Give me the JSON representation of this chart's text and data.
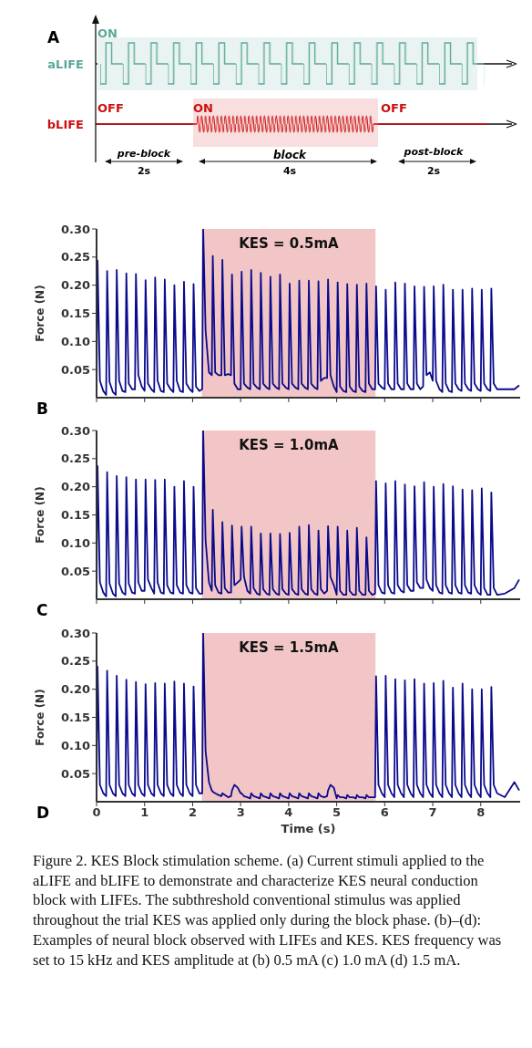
{
  "chart_data": [
    {
      "type": "other",
      "title": "A",
      "annotations": [
        "ON",
        "aLIFE",
        "OFF",
        "bLIFE",
        "ON",
        "OFF",
        "pre-block",
        "2s",
        "block",
        "4s",
        "post-block",
        "2s"
      ]
    },
    {
      "type": "line",
      "title": "B",
      "ylabel": "Force (N)",
      "xlim": [
        0,
        8.82
      ],
      "xticks": [
        0,
        1,
        2,
        3,
        4,
        5,
        6,
        7,
        8
      ],
      "ylim": [
        0,
        0.3
      ],
      "yticks": [
        0.05,
        {
          "value": 0.1,
          "label": "0.10"
        },
        0.15,
        {
          "value": 0.2,
          "label": "0.20"
        },
        0.25,
        {
          "value": 0.3,
          "label": "0.30"
        }
      ],
      "tick_labels": "y",
      "marker": "none",
      "line_style": "solid",
      "bands": [
        {
          "axis": "x",
          "from": 2.2,
          "to": 5.8,
          "label": "KES = 0.5mA",
          "color": "#f2c6c6"
        }
      ],
      "x": [
        0,
        0.02,
        0.07,
        0.14,
        0.2,
        0.22,
        0.27,
        0.34,
        0.4,
        0.42,
        0.47,
        0.54,
        0.6,
        0.62,
        0.67,
        0.74,
        0.8,
        0.82,
        0.87,
        0.94,
        1,
        1.02,
        1.07,
        1.14,
        1.2,
        1.22,
        1.27,
        1.34,
        1.4,
        1.42,
        1.47,
        1.54,
        1.6,
        1.62,
        1.67,
        1.74,
        1.8,
        1.82,
        1.87,
        1.94,
        2,
        2.02,
        2.07,
        2.14,
        2.2,
        2.22,
        2.27,
        2.34,
        2.4,
        2.42,
        2.47,
        2.54,
        2.6,
        2.62,
        2.67,
        2.74,
        2.8,
        2.82,
        2.87,
        2.94,
        3,
        3.02,
        3.07,
        3.14,
        3.2,
        3.22,
        3.27,
        3.34,
        3.4,
        3.42,
        3.47,
        3.54,
        3.6,
        3.62,
        3.67,
        3.74,
        3.8,
        3.82,
        3.87,
        3.94,
        4,
        4.02,
        4.07,
        4.14,
        4.2,
        4.22,
        4.27,
        4.34,
        4.4,
        4.42,
        4.47,
        4.54,
        4.6,
        4.62,
        4.67,
        4.74,
        4.8,
        4.82,
        4.87,
        4.94,
        5,
        5.02,
        5.07,
        5.14,
        5.2,
        5.22,
        5.27,
        5.34,
        5.4,
        5.42,
        5.47,
        5.54,
        5.6,
        5.62,
        5.67,
        5.74,
        5.8,
        5.82,
        5.87,
        5.94,
        6,
        6.02,
        6.07,
        6.14,
        6.2,
        6.22,
        6.27,
        6.34,
        6.4,
        6.42,
        6.47,
        6.54,
        6.6,
        6.62,
        6.67,
        6.74,
        6.8,
        6.82,
        6.87,
        6.94,
        7,
        7.02,
        7.07,
        7.14,
        7.2,
        7.22,
        7.27,
        7.34,
        7.4,
        7.42,
        7.47,
        7.54,
        7.6,
        7.62,
        7.67,
        7.74,
        7.8,
        7.82,
        7.87,
        7.94,
        8,
        8.02,
        8.07,
        8.14,
        8.2,
        8.22,
        8.27,
        8.34,
        8.5,
        8.7,
        8.8
      ],
      "series": [
        {
          "color": "#0a0a8c",
          "values": [
            0.01,
            0.244,
            0.03,
            0.012,
            0.005,
            0.225,
            0.028,
            0.01,
            0.005,
            0.227,
            0.03,
            0.012,
            0.01,
            0.221,
            0.025,
            0.015,
            0.015,
            0.22,
            0.04,
            0.02,
            0.012,
            0.209,
            0.025,
            0.015,
            0.01,
            0.214,
            0.03,
            0.012,
            0.01,
            0.21,
            0.025,
            0.015,
            0.01,
            0.2,
            0.03,
            0.012,
            0.01,
            0.206,
            0.025,
            0.015,
            0.01,
            0.202,
            0.02,
            0.012,
            0.015,
            0.3,
            0.12,
            0.045,
            0.04,
            0.252,
            0.045,
            0.04,
            0.04,
            0.245,
            0.04,
            0.042,
            0.04,
            0.219,
            0.025,
            0.015,
            0.015,
            0.224,
            0.025,
            0.018,
            0.015,
            0.227,
            0.025,
            0.018,
            0.015,
            0.222,
            0.025,
            0.018,
            0.015,
            0.215,
            0.025,
            0.018,
            0.015,
            0.219,
            0.025,
            0.018,
            0.015,
            0.203,
            0.025,
            0.018,
            0.015,
            0.208,
            0.025,
            0.018,
            0.015,
            0.208,
            0.025,
            0.018,
            0.015,
            0.207,
            0.03,
            0.035,
            0.035,
            0.21,
            0.04,
            0.02,
            0.01,
            0.205,
            0.02,
            0.012,
            0.01,
            0.202,
            0.02,
            0.012,
            0.01,
            0.201,
            0.02,
            0.012,
            0.01,
            0.203,
            0.025,
            0.015,
            0.015,
            0.198,
            0.025,
            0.018,
            0.015,
            0.192,
            0.025,
            0.015,
            0.015,
            0.205,
            0.025,
            0.015,
            0.015,
            0.203,
            0.025,
            0.015,
            0.015,
            0.198,
            0.025,
            0.015,
            0.02,
            0.197,
            0.04,
            0.045,
            0.03,
            0.198,
            0.03,
            0.015,
            0.01,
            0.201,
            0.025,
            0.012,
            0.01,
            0.192,
            0.025,
            0.015,
            0.012,
            0.192,
            0.025,
            0.015,
            0.012,
            0.194,
            0.025,
            0.015,
            0.012,
            0.192,
            0.025,
            0.015,
            0.012,
            0.194,
            0.025,
            0.015,
            0.015,
            0.015,
            0.022
          ]
        }
      ]
    },
    {
      "type": "line",
      "title": "C",
      "ylabel": "Force (N)",
      "xlim": [
        0,
        8.82
      ],
      "xticks": [
        0,
        1,
        2,
        3,
        4,
        5,
        6,
        7,
        8
      ],
      "ylim": [
        0,
        0.3
      ],
      "yticks": [
        0.05,
        {
          "value": 0.1,
          "label": "0.10"
        },
        0.15,
        {
          "value": 0.2,
          "label": "0.20"
        },
        0.25,
        {
          "value": 0.3,
          "label": "0.30"
        }
      ],
      "tick_labels": "y",
      "marker": "none",
      "line_style": "solid",
      "bands": [
        {
          "axis": "x",
          "from": 2.2,
          "to": 5.8,
          "label": "KES = 1.0mA",
          "color": "#f2c6c6"
        }
      ],
      "x": [
        0,
        0.02,
        0.07,
        0.14,
        0.2,
        0.22,
        0.27,
        0.34,
        0.4,
        0.42,
        0.47,
        0.54,
        0.6,
        0.62,
        0.67,
        0.74,
        0.8,
        0.82,
        0.87,
        0.94,
        1,
        1.02,
        1.07,
        1.14,
        1.2,
        1.22,
        1.27,
        1.34,
        1.4,
        1.42,
        1.47,
        1.54,
        1.6,
        1.62,
        1.67,
        1.74,
        1.8,
        1.82,
        1.87,
        1.94,
        2,
        2.02,
        2.07,
        2.14,
        2.2,
        2.22,
        2.27,
        2.34,
        2.4,
        2.42,
        2.47,
        2.54,
        2.6,
        2.62,
        2.67,
        2.74,
        2.8,
        2.82,
        2.87,
        2.94,
        3,
        3.02,
        3.07,
        3.14,
        3.2,
        3.22,
        3.27,
        3.34,
        3.4,
        3.42,
        3.47,
        3.54,
        3.6,
        3.62,
        3.67,
        3.74,
        3.8,
        3.82,
        3.87,
        3.94,
        4,
        4.02,
        4.07,
        4.14,
        4.2,
        4.22,
        4.27,
        4.34,
        4.4,
        4.42,
        4.47,
        4.54,
        4.6,
        4.62,
        4.67,
        4.74,
        4.8,
        4.82,
        4.87,
        4.94,
        5,
        5.02,
        5.07,
        5.14,
        5.2,
        5.22,
        5.27,
        5.34,
        5.4,
        5.42,
        5.47,
        5.54,
        5.6,
        5.62,
        5.67,
        5.74,
        5.8,
        5.82,
        5.87,
        5.94,
        6,
        6.02,
        6.07,
        6.14,
        6.2,
        6.22,
        6.27,
        6.34,
        6.4,
        6.42,
        6.47,
        6.54,
        6.6,
        6.62,
        6.67,
        6.74,
        6.8,
        6.82,
        6.87,
        6.94,
        7,
        7.02,
        7.07,
        7.14,
        7.2,
        7.22,
        7.27,
        7.34,
        7.4,
        7.42,
        7.47,
        7.54,
        7.6,
        7.62,
        7.67,
        7.74,
        7.8,
        7.82,
        7.87,
        7.94,
        8,
        8.02,
        8.07,
        8.14,
        8.2,
        8.22,
        8.27,
        8.34,
        8.5,
        8.7,
        8.8
      ],
      "series": [
        {
          "color": "#0a0a8c",
          "values": [
            0.01,
            0.237,
            0.03,
            0.012,
            0.005,
            0.226,
            0.028,
            0.01,
            0.005,
            0.219,
            0.028,
            0.012,
            0.008,
            0.217,
            0.028,
            0.012,
            0.01,
            0.213,
            0.03,
            0.015,
            0.015,
            0.213,
            0.035,
            0.02,
            0.01,
            0.212,
            0.03,
            0.012,
            0.01,
            0.213,
            0.025,
            0.012,
            0.01,
            0.2,
            0.025,
            0.012,
            0.01,
            0.21,
            0.025,
            0.012,
            0.01,
            0.2,
            0.02,
            0.01,
            0.01,
            0.3,
            0.105,
            0.03,
            0.015,
            0.159,
            0.025,
            0.012,
            0.01,
            0.137,
            0.02,
            0.012,
            0.012,
            0.131,
            0.025,
            0.03,
            0.035,
            0.129,
            0.04,
            0.015,
            0.01,
            0.129,
            0.02,
            0.01,
            0.008,
            0.117,
            0.018,
            0.01,
            0.008,
            0.117,
            0.018,
            0.01,
            0.008,
            0.116,
            0.018,
            0.01,
            0.008,
            0.118,
            0.018,
            0.01,
            0.008,
            0.129,
            0.018,
            0.01,
            0.008,
            0.132,
            0.018,
            0.01,
            0.008,
            0.122,
            0.018,
            0.01,
            0.015,
            0.13,
            0.04,
            0.025,
            0.008,
            0.129,
            0.015,
            0.008,
            0.008,
            0.122,
            0.015,
            0.008,
            0.008,
            0.127,
            0.015,
            0.008,
            0.008,
            0.11,
            0.015,
            0.008,
            0.01,
            0.21,
            0.025,
            0.012,
            0.01,
            0.206,
            0.025,
            0.012,
            0.01,
            0.21,
            0.025,
            0.015,
            0.012,
            0.204,
            0.025,
            0.015,
            0.015,
            0.201,
            0.03,
            0.02,
            0.02,
            0.208,
            0.035,
            0.02,
            0.015,
            0.2,
            0.025,
            0.012,
            0.01,
            0.205,
            0.025,
            0.012,
            0.01,
            0.201,
            0.025,
            0.012,
            0.01,
            0.195,
            0.025,
            0.012,
            0.01,
            0.194,
            0.025,
            0.012,
            0.008,
            0.197,
            0.02,
            0.008,
            0.008,
            0.19,
            0.02,
            0.008,
            0.01,
            0.02,
            0.035
          ]
        }
      ]
    },
    {
      "type": "line",
      "title": "D",
      "xlabel": "Time (s)",
      "ylabel": "Force (N)",
      "xlim": [
        0,
        8.82
      ],
      "xticks": [
        0,
        1,
        2,
        3,
        4,
        5,
        6,
        7,
        8
      ],
      "ylim": [
        0,
        0.3
      ],
      "yticks": [
        0.05,
        {
          "value": 0.1,
          "label": "0.10"
        },
        0.15,
        {
          "value": 0.2,
          "label": "0.20"
        },
        0.25,
        {
          "value": 0.3,
          "label": "0.30"
        }
      ],
      "marker": "none",
      "line_style": "solid",
      "bands": [
        {
          "axis": "x",
          "from": 2.2,
          "to": 5.8,
          "label": "KES = 1.5mA",
          "color": "#f2c6c6"
        }
      ],
      "annotations": [
        "Figure 2. KES Block stimulation scheme. (a) Current stimuli applied to the aLIFE and bLIFE to demonstrate and characterize KES neural conduction block with LIFEs. The subthreshold conventional stimulus was applied throughout the trial KES was applied only during the block phase. (b)–(d): Examples of neural block observed with LIFEs and KES. KES frequency was set to 15 kHz and KES amplitude at (b) 0.5 mA (c) 1.0 mA (d) 1.5 mA."
      ],
      "x": [
        0,
        0.02,
        0.07,
        0.14,
        0.2,
        0.22,
        0.27,
        0.34,
        0.4,
        0.42,
        0.47,
        0.54,
        0.6,
        0.62,
        0.67,
        0.74,
        0.8,
        0.82,
        0.87,
        0.94,
        1,
        1.02,
        1.07,
        1.14,
        1.2,
        1.22,
        1.27,
        1.34,
        1.4,
        1.42,
        1.47,
        1.54,
        1.6,
        1.62,
        1.67,
        1.74,
        1.8,
        1.82,
        1.87,
        1.94,
        2,
        2.02,
        2.07,
        2.14,
        2.2,
        2.22,
        2.27,
        2.34,
        2.4,
        2.42,
        2.47,
        2.54,
        2.6,
        2.62,
        2.67,
        2.74,
        2.8,
        2.82,
        2.87,
        2.94,
        3,
        3.02,
        3.07,
        3.14,
        3.2,
        3.22,
        3.27,
        3.34,
        3.4,
        3.42,
        3.47,
        3.54,
        3.6,
        3.62,
        3.67,
        3.74,
        3.8,
        3.82,
        3.87,
        3.94,
        4,
        4.02,
        4.07,
        4.14,
        4.2,
        4.22,
        4.27,
        4.34,
        4.4,
        4.42,
        4.47,
        4.54,
        4.6,
        4.62,
        4.67,
        4.74,
        4.8,
        4.82,
        4.87,
        4.94,
        5,
        5.02,
        5.07,
        5.14,
        5.2,
        5.22,
        5.27,
        5.34,
        5.4,
        5.42,
        5.47,
        5.54,
        5.6,
        5.62,
        5.67,
        5.74,
        5.8,
        5.82,
        5.87,
        5.94,
        6,
        6.02,
        6.07,
        6.14,
        6.2,
        6.22,
        6.27,
        6.34,
        6.4,
        6.42,
        6.47,
        6.54,
        6.6,
        6.62,
        6.67,
        6.74,
        6.8,
        6.82,
        6.87,
        6.94,
        7,
        7.02,
        7.07,
        7.14,
        7.2,
        7.22,
        7.27,
        7.34,
        7.4,
        7.42,
        7.47,
        7.54,
        7.6,
        7.62,
        7.67,
        7.74,
        7.8,
        7.82,
        7.87,
        7.94,
        8,
        8.02,
        8.07,
        8.14,
        8.2,
        8.22,
        8.27,
        8.34,
        8.5,
        8.7,
        8.8
      ],
      "series": [
        {
          "color": "#0a0a8c",
          "values": [
            0.01,
            0.24,
            0.03,
            0.015,
            0.01,
            0.233,
            0.03,
            0.015,
            0.01,
            0.224,
            0.03,
            0.015,
            0.01,
            0.217,
            0.03,
            0.015,
            0.01,
            0.213,
            0.03,
            0.015,
            0.01,
            0.209,
            0.03,
            0.015,
            0.01,
            0.211,
            0.03,
            0.015,
            0.01,
            0.21,
            0.03,
            0.015,
            0.01,
            0.214,
            0.03,
            0.015,
            0.01,
            0.21,
            0.03,
            0.015,
            0.01,
            0.205,
            0.03,
            0.015,
            0.015,
            0.3,
            0.09,
            0.035,
            0.02,
            0.018,
            0.015,
            0.012,
            0.01,
            0.015,
            0.012,
            0.008,
            0.01,
            0.02,
            0.03,
            0.025,
            0.015,
            0.015,
            0.01,
            0.008,
            0.006,
            0.015,
            0.01,
            0.008,
            0.006,
            0.015,
            0.01,
            0.008,
            0.006,
            0.015,
            0.01,
            0.008,
            0.006,
            0.015,
            0.01,
            0.008,
            0.006,
            0.015,
            0.01,
            0.008,
            0.006,
            0.015,
            0.01,
            0.008,
            0.006,
            0.015,
            0.01,
            0.008,
            0.006,
            0.015,
            0.01,
            0.008,
            0.01,
            0.02,
            0.03,
            0.025,
            0.006,
            0.012,
            0.008,
            0.008,
            0.006,
            0.012,
            0.008,
            0.008,
            0.006,
            0.012,
            0.008,
            0.008,
            0.006,
            0.012,
            0.008,
            0.008,
            0.008,
            0.223,
            0.03,
            0.015,
            0.008,
            0.224,
            0.03,
            0.015,
            0.008,
            0.218,
            0.03,
            0.015,
            0.008,
            0.216,
            0.03,
            0.015,
            0.008,
            0.218,
            0.03,
            0.015,
            0.008,
            0.21,
            0.03,
            0.015,
            0.008,
            0.211,
            0.03,
            0.015,
            0.008,
            0.215,
            0.03,
            0.015,
            0.008,
            0.203,
            0.03,
            0.015,
            0.008,
            0.21,
            0.03,
            0.015,
            0.008,
            0.2,
            0.03,
            0.015,
            0.008,
            0.2,
            0.03,
            0.015,
            0.008,
            0.204,
            0.03,
            0.015,
            0.008,
            0.035,
            0.02
          ]
        }
      ]
    }
  ]
}
